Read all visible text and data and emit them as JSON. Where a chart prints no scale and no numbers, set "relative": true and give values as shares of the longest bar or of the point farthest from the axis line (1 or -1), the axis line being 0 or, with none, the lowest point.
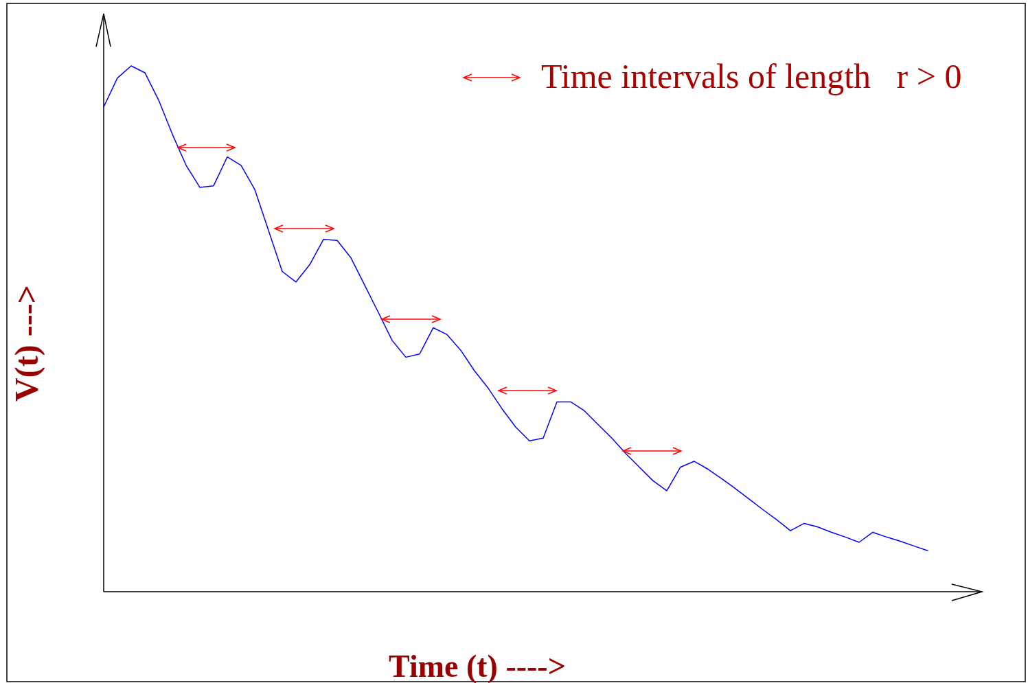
{
  "chart_data": {
    "type": "line",
    "relative": true,
    "xlabel": "Time (t) ---->",
    "ylabel": "V(t) --->",
    "annotations": [
      "Time intervals of length   r > 0"
    ],
    "color": "#0000ff",
    "categories": [
      null,
      null,
      null,
      null,
      null,
      null,
      null,
      null,
      null,
      null,
      null,
      null,
      null,
      null,
      null,
      null,
      null,
      null,
      null,
      null,
      null,
      null,
      null,
      null,
      null,
      null,
      null,
      null,
      null,
      null,
      null,
      null,
      null,
      null,
      null,
      null,
      null,
      null,
      null,
      null,
      null,
      null,
      null,
      null,
      null,
      null,
      null,
      null,
      null,
      null,
      null,
      null,
      null,
      null,
      null,
      null,
      null,
      null,
      null,
      null,
      null
    ],
    "values": [
      0.922,
      0.977,
      1,
      0.987,
      0.935,
      0.87,
      0.811,
      0.769,
      0.772,
      0.827,
      0.811,
      0.765,
      0.687,
      0.609,
      0.589,
      0.622,
      0.67,
      0.668,
      0.635,
      0.583,
      0.531,
      0.478,
      0.446,
      0.452,
      0.502,
      0.489,
      0.459,
      0.42,
      0.387,
      0.348,
      0.313,
      0.287,
      0.292,
      0.361,
      0.361,
      0.344,
      0.318,
      0.292,
      0.263,
      0.237,
      0.211,
      0.192,
      0.237,
      0.248,
      0.233,
      0.215,
      0.196,
      0.176,
      0.156,
      0.137,
      0.116,
      0.13,
      0.123,
      0.113,
      0.104,
      0.094,
      0.113,
      0.104,
      0.096,
      0.087,
      0.078
    ]
  }
}
